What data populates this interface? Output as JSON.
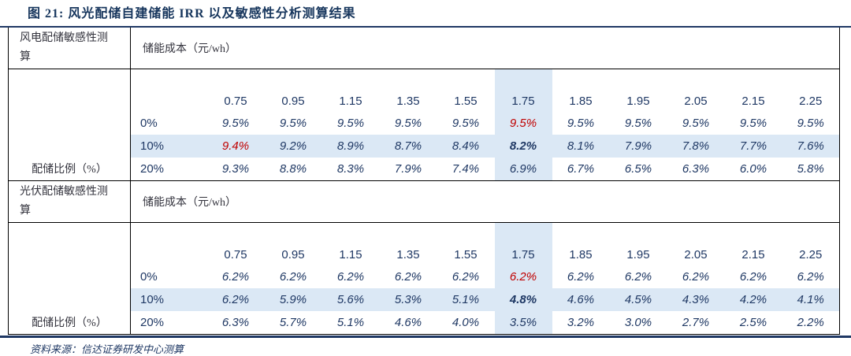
{
  "figure": {
    "title": "图 21:  风光配储自建储能 IRR 以及敏感性分析测算结果",
    "source": "资料来源：信达证券研发中心测算"
  },
  "colors": {
    "navy_text": "#1f3864",
    "highlight_blue": "#dbe8f5",
    "red_value": "#c00000",
    "rule_navy": "#1f3864",
    "cell_border": "#000000"
  },
  "table": {
    "cost_header_label": "储能成本（元/wh）",
    "ratio_axis_label": "配储比例（%）",
    "cost_columns": [
      "0.75",
      "0.95",
      "1.15",
      "1.35",
      "1.55",
      "1.75",
      "1.85",
      "1.95",
      "2.05",
      "2.15",
      "2.25"
    ],
    "highlight_column_index": 5,
    "sections": [
      {
        "label": "风电配储敏感性测算",
        "rows": [
          {
            "ratio": "0%",
            "values": [
              "9.5%",
              "9.5%",
              "9.5%",
              "9.5%",
              "9.5%",
              "9.5%",
              "9.5%",
              "9.5%",
              "9.5%",
              "9.5%",
              "9.5%"
            ],
            "red": [
              5
            ],
            "bold": [],
            "highlight_row": false
          },
          {
            "ratio": "10%",
            "values": [
              "9.4%",
              "9.2%",
              "8.9%",
              "8.7%",
              "8.4%",
              "8.2%",
              "8.1%",
              "7.9%",
              "7.8%",
              "7.7%",
              "7.6%"
            ],
            "red": [
              0
            ],
            "bold": [
              5
            ],
            "highlight_row": true
          },
          {
            "ratio": "20%",
            "values": [
              "9.3%",
              "8.8%",
              "8.3%",
              "7.9%",
              "7.4%",
              "6.9%",
              "6.7%",
              "6.5%",
              "6.3%",
              "6.0%",
              "5.8%"
            ],
            "red": [],
            "bold": [],
            "highlight_row": false
          }
        ]
      },
      {
        "label": "光伏配储敏感性测算",
        "rows": [
          {
            "ratio": "0%",
            "values": [
              "6.2%",
              "6.2%",
              "6.2%",
              "6.2%",
              "6.2%",
              "6.2%",
              "6.2%",
              "6.2%",
              "6.2%",
              "6.2%",
              "6.2%"
            ],
            "red": [
              5
            ],
            "bold": [],
            "highlight_row": false
          },
          {
            "ratio": "10%",
            "values": [
              "6.2%",
              "5.9%",
              "5.6%",
              "5.3%",
              "5.1%",
              "4.8%",
              "4.6%",
              "4.5%",
              "4.3%",
              "4.2%",
              "4.1%"
            ],
            "red": [],
            "bold": [
              5
            ],
            "highlight_row": true
          },
          {
            "ratio": "20%",
            "values": [
              "6.3%",
              "5.7%",
              "5.1%",
              "4.6%",
              "4.0%",
              "3.5%",
              "3.2%",
              "3.0%",
              "2.7%",
              "2.5%",
              "2.2%"
            ],
            "red": [],
            "bold": [],
            "highlight_row": false
          }
        ]
      }
    ]
  }
}
